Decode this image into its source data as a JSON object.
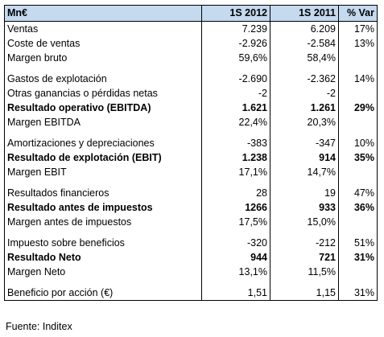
{
  "header": {
    "label": "Mn€",
    "col1": "1S 2012",
    "col2": "1S 2011",
    "col3": "% Var"
  },
  "rows": [
    {
      "label": "Ventas",
      "v2012": "7.239",
      "v2011": "6.209",
      "var": "17%",
      "bold": false
    },
    {
      "label": "Coste de ventas",
      "v2012": "-2.926",
      "v2011": "-2.584",
      "var": "13%",
      "bold": false
    },
    {
      "label": "Margen bruto",
      "v2012": "59,6%",
      "v2011": "58,4%",
      "var": "",
      "bold": false
    },
    {
      "gap": true
    },
    {
      "label": "Gastos de explotación",
      "v2012": "-2.690",
      "v2011": "-2.362",
      "var": "14%",
      "bold": false
    },
    {
      "label": "Otras ganancias o pérdidas netas",
      "v2012": "-2",
      "v2011": "-2",
      "var": "",
      "bold": false
    },
    {
      "label": "Resultado operativo (EBITDA)",
      "v2012": "1.621",
      "v2011": "1.261",
      "var": "29%",
      "bold": true
    },
    {
      "label": "Margen EBITDA",
      "v2012": "22,4%",
      "v2011": "20,3%",
      "var": "",
      "bold": false
    },
    {
      "gap": true
    },
    {
      "label": "Amortizaciones y depreciaciones",
      "v2012": "-383",
      "v2011": "-347",
      "var": "10%",
      "bold": false
    },
    {
      "label": "Resultado de explotación (EBIT)",
      "v2012": "1.238",
      "v2011": "914",
      "var": "35%",
      "bold": true
    },
    {
      "label": "Margen EBIT",
      "v2012": "17,1%",
      "v2011": "14,7%",
      "var": "",
      "bold": false
    },
    {
      "gap": true
    },
    {
      "label": "Resultados financieros",
      "v2012": "28",
      "v2011": "19",
      "var": "47%",
      "bold": false
    },
    {
      "label": "Resultado antes de impuestos",
      "v2012": "1266",
      "v2011": "933",
      "var": "36%",
      "bold": true
    },
    {
      "label": "Margen antes de impuestos",
      "v2012": "17,5%",
      "v2011": "15,0%",
      "var": "",
      "bold": false
    },
    {
      "gap": true
    },
    {
      "label": "Impuesto sobre beneficios",
      "v2012": "-320",
      "v2011": "-212",
      "var": "51%",
      "bold": false
    },
    {
      "label": "Resultado Neto",
      "v2012": "944",
      "v2011": "721",
      "var": "31%",
      "bold": true
    },
    {
      "label": "Margen Neto",
      "v2012": "13,1%",
      "v2011": "11,5%",
      "var": "",
      "bold": false
    },
    {
      "gap": true
    },
    {
      "label": "Beneficio por acción (€)",
      "v2012": "1,51",
      "v2011": "1,15",
      "var": "31%",
      "bold": false
    }
  ],
  "source": "Fuente: Inditex",
  "colors": {
    "header_bg": "#c5d9ef"
  }
}
